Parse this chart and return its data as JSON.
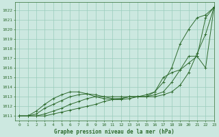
{
  "title": "Graphe pression niveau de la mer (hPa)",
  "bg_color": "#cce8e0",
  "grid_color": "#99ccbb",
  "line_color": "#2d6a2d",
  "xlim": [
    -0.5,
    23
  ],
  "ylim": [
    1010.5,
    1022.8
  ],
  "xticks": [
    0,
    1,
    2,
    3,
    4,
    5,
    6,
    7,
    8,
    9,
    10,
    11,
    12,
    13,
    14,
    15,
    16,
    17,
    18,
    19,
    20,
    21,
    22,
    23
  ],
  "yticks": [
    1011,
    1012,
    1013,
    1014,
    1015,
    1016,
    1017,
    1018,
    1019,
    1020,
    1021,
    1022
  ],
  "series": [
    [
      1011.0,
      1011.0,
      1011.0,
      1011.0,
      1011.2,
      1011.4,
      1011.6,
      1011.8,
      1012.0,
      1012.2,
      1012.5,
      1012.7,
      1012.8,
      1013.0,
      1013.0,
      1013.0,
      1013.0,
      1013.2,
      1013.5,
      1014.2,
      1015.5,
      1017.5,
      1019.5,
      1022.3
    ],
    [
      1011.0,
      1011.0,
      1011.0,
      1011.2,
      1011.5,
      1011.8,
      1012.2,
      1012.5,
      1012.8,
      1013.0,
      1013.0,
      1013.0,
      1013.0,
      1013.0,
      1013.0,
      1013.2,
      1013.5,
      1015.0,
      1015.5,
      1015.8,
      1016.5,
      1017.2,
      1021.2,
      1022.3
    ],
    [
      1011.0,
      1011.0,
      1011.2,
      1011.8,
      1012.2,
      1012.6,
      1013.0,
      1013.2,
      1013.3,
      1013.2,
      1013.0,
      1012.8,
      1012.8,
      1013.0,
      1013.0,
      1013.0,
      1013.2,
      1013.5,
      1014.5,
      1015.8,
      1017.2,
      1017.2,
      1016.0,
      1022.3
    ],
    [
      1011.0,
      1011.0,
      1011.5,
      1012.2,
      1012.8,
      1013.2,
      1013.5,
      1013.5,
      1013.3,
      1013.0,
      1012.8,
      1012.7,
      1012.7,
      1012.8,
      1013.0,
      1013.0,
      1013.5,
      1014.5,
      1016.0,
      1018.5,
      1020.0,
      1021.2,
      1021.5,
      1022.3
    ]
  ]
}
